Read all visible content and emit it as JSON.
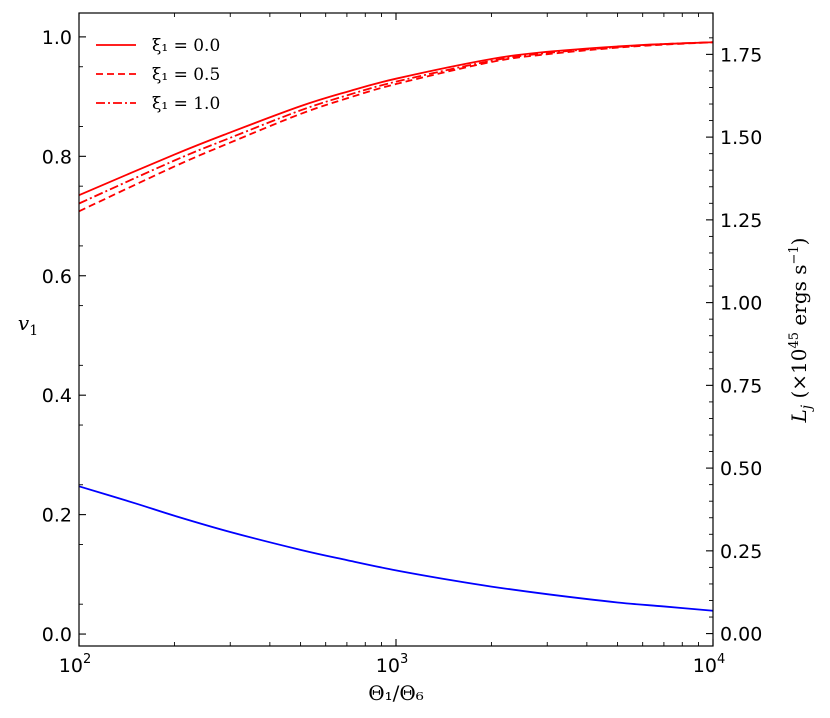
{
  "chart_data": {
    "type": "line",
    "xlabel": "Θ₁/Θ₆",
    "ylabel_left": "v₁",
    "ylabel_right": "L_j (×10^45 ergs s^-1)",
    "ylabel_right_parts": {
      "symbol": "L",
      "sub": "j",
      "pre": "(×10",
      "exp1": "45",
      "mid": " ergs s",
      "exp2": "−1",
      "post": ")"
    },
    "x_scale": "log",
    "xlim": [
      100,
      10000
    ],
    "ylim_left": [
      -0.02,
      1.04
    ],
    "ylim_right": [
      -0.0375,
      1.875
    ],
    "x_ticks": [
      {
        "value": 100,
        "base": "10",
        "exp": "2"
      },
      {
        "value": 1000,
        "base": "10",
        "exp": "3"
      },
      {
        "value": 10000,
        "base": "10",
        "exp": "4"
      }
    ],
    "y_ticks_left": [
      "0.0",
      "0.2",
      "0.4",
      "0.6",
      "0.8",
      "1.0"
    ],
    "y_ticks_right": [
      "0.00",
      "0.25",
      "0.50",
      "0.75",
      "1.00",
      "1.25",
      "1.50",
      "1.75"
    ],
    "legend": {
      "placement": "top-left",
      "entries": [
        {
          "label": "ξ₁ = 0.0",
          "style": "solid",
          "color": "#ff0000"
        },
        {
          "label": "ξ₁ = 0.5",
          "style": "dashed",
          "color": "#ff0000"
        },
        {
          "label": "ξ₁ = 1.0",
          "style": "dashdot",
          "color": "#ff0000"
        }
      ]
    },
    "series": [
      {
        "name": "ξ₁ = 0.0",
        "axis": "left",
        "color": "#ff0000",
        "style": "solid",
        "x": [
          100,
          200,
          300,
          500,
          700,
          1000,
          2000,
          3000,
          5000,
          7000,
          10000
        ],
        "y": [
          0.735,
          0.803,
          0.84,
          0.884,
          0.908,
          0.93,
          0.963,
          0.975,
          0.984,
          0.988,
          0.991
        ]
      },
      {
        "name": "ξ₁ = 0.5",
        "axis": "left",
        "color": "#ff0000",
        "style": "dashed",
        "x": [
          100,
          200,
          300,
          500,
          700,
          1000,
          2000,
          3000,
          5000,
          7000,
          10000
        ],
        "y": [
          0.708,
          0.783,
          0.823,
          0.871,
          0.897,
          0.921,
          0.958,
          0.971,
          0.982,
          0.987,
          0.991
        ]
      },
      {
        "name": "ξ₁ = 1.0",
        "axis": "left",
        "color": "#ff0000",
        "style": "dashdot",
        "x": [
          100,
          200,
          300,
          500,
          700,
          1000,
          2000,
          3000,
          5000,
          7000,
          10000
        ],
        "y": [
          0.721,
          0.793,
          0.831,
          0.877,
          0.902,
          0.925,
          0.96,
          0.973,
          0.983,
          0.988,
          0.991
        ]
      },
      {
        "name": "",
        "axis": "right",
        "color": "#0000ff",
        "style": "solid",
        "x": [
          100,
          150,
          200,
          300,
          500,
          700,
          1000,
          1500,
          2000,
          3000,
          5000,
          7000,
          10000
        ],
        "y": [
          0.445,
          0.394,
          0.356,
          0.307,
          0.253,
          0.222,
          0.191,
          0.161,
          0.142,
          0.119,
          0.094,
          0.082,
          0.069
        ]
      }
    ]
  }
}
